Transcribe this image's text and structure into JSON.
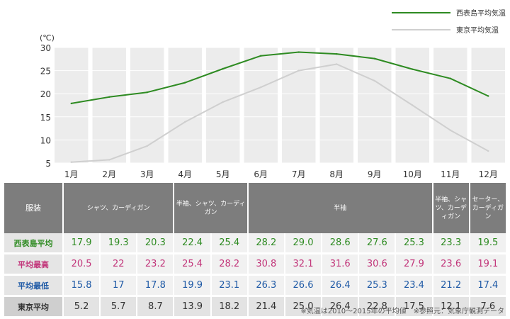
{
  "chart_data": {
    "type": "line",
    "unit_label": "(℃)",
    "categories": [
      "1月",
      "2月",
      "3月",
      "4月",
      "5月",
      "6月",
      "7月",
      "8月",
      "9月",
      "10月",
      "11月",
      "12月"
    ],
    "ylim": [
      5,
      30
    ],
    "yticks": [
      5,
      10,
      15,
      20,
      25,
      30
    ],
    "grid": true,
    "legend_position": "top-right",
    "series": [
      {
        "name": "西表島平均気温",
        "color": "#2e8b22",
        "values": [
          17.9,
          19.3,
          20.3,
          22.4,
          25.4,
          28.2,
          29.0,
          28.6,
          27.6,
          25.3,
          23.3,
          19.5
        ]
      },
      {
        "name": "東京平均気温",
        "color": "#cfcfcf",
        "values": [
          5.2,
          5.7,
          8.7,
          13.9,
          18.2,
          21.4,
          25.0,
          26.4,
          22.8,
          17.5,
          12.1,
          7.6
        ]
      }
    ]
  },
  "table": {
    "header_label": "服装",
    "clothing": [
      {
        "label": "シャツ、カーディガン",
        "span": 3
      },
      {
        "label": "半袖、シャツ、カーディガン",
        "span": 2
      },
      {
        "label": "半袖",
        "span": 5
      },
      {
        "label": "半袖、シャツ、カーディガン",
        "span": 1
      },
      {
        "label": "セーター、カーディガン",
        "span": 1
      }
    ],
    "rows": [
      {
        "label": "西表島平均",
        "color": "#2e8b22",
        "values": [
          "17.9",
          "19.3",
          "20.3",
          "22.4",
          "25.4",
          "28.2",
          "29.0",
          "28.6",
          "27.6",
          "25.3",
          "23.3",
          "19.5"
        ]
      },
      {
        "label": "平均最高",
        "color": "#c2357a",
        "values": [
          "20.5",
          "22",
          "23.2",
          "25.4",
          "28.2",
          "30.8",
          "32.1",
          "31.6",
          "30.6",
          "27.9",
          "23.6",
          "19.1"
        ]
      },
      {
        "label": "平均最低",
        "color": "#1f5aa6",
        "values": [
          "15.8",
          "17",
          "17.8",
          "19.9",
          "23.1",
          "26.3",
          "26.6",
          "26.4",
          "25.3",
          "23.4",
          "21.2",
          "17.4"
        ]
      },
      {
        "label": "東京平均",
        "color": "#333333",
        "values": [
          "5.2",
          "5.7",
          "8.7",
          "13.9",
          "18.2",
          "21.4",
          "25.0",
          "26.4",
          "22.8",
          "17.5",
          "12.1",
          "7.6"
        ]
      }
    ]
  },
  "footnote": "※気温は2010～2015年の平均値　※参照元：気象庁観測データ"
}
